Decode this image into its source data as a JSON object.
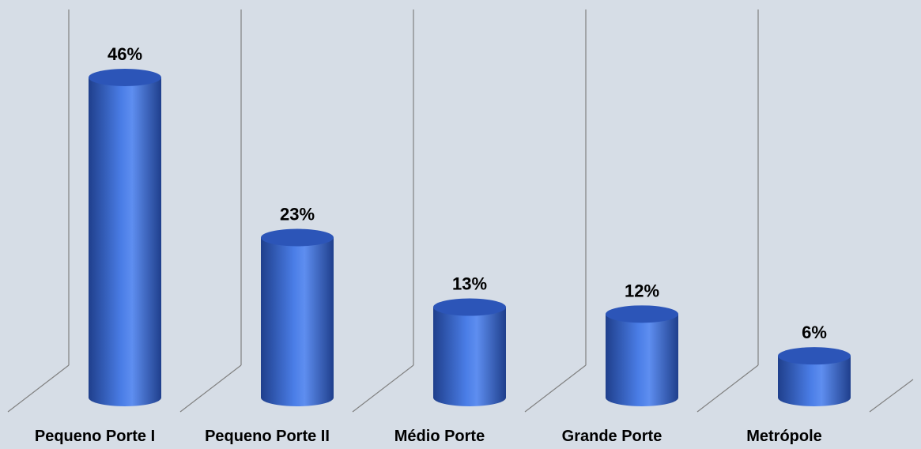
{
  "chart_data": {
    "type": "bar",
    "style": "3d-cylinder",
    "categories": [
      "Pequeno Porte I",
      "Pequeno Porte II",
      "Médio Porte",
      "Grande Porte",
      "Metrópole"
    ],
    "values": [
      46,
      23,
      13,
      12,
      6
    ],
    "value_labels": [
      "46%",
      "23%",
      "13%",
      "12%",
      "6%"
    ],
    "unit": "%",
    "ylim": [
      0,
      50
    ],
    "grid": true,
    "legend": "none"
  },
  "colors": {
    "background": "#d6dde6",
    "bar_dark": "#1f3f8c",
    "bar_mid": "#3a6bd4",
    "bar_light": "#5e8ef0",
    "bar_top": "#2c55b8",
    "gridline": "#808080"
  }
}
